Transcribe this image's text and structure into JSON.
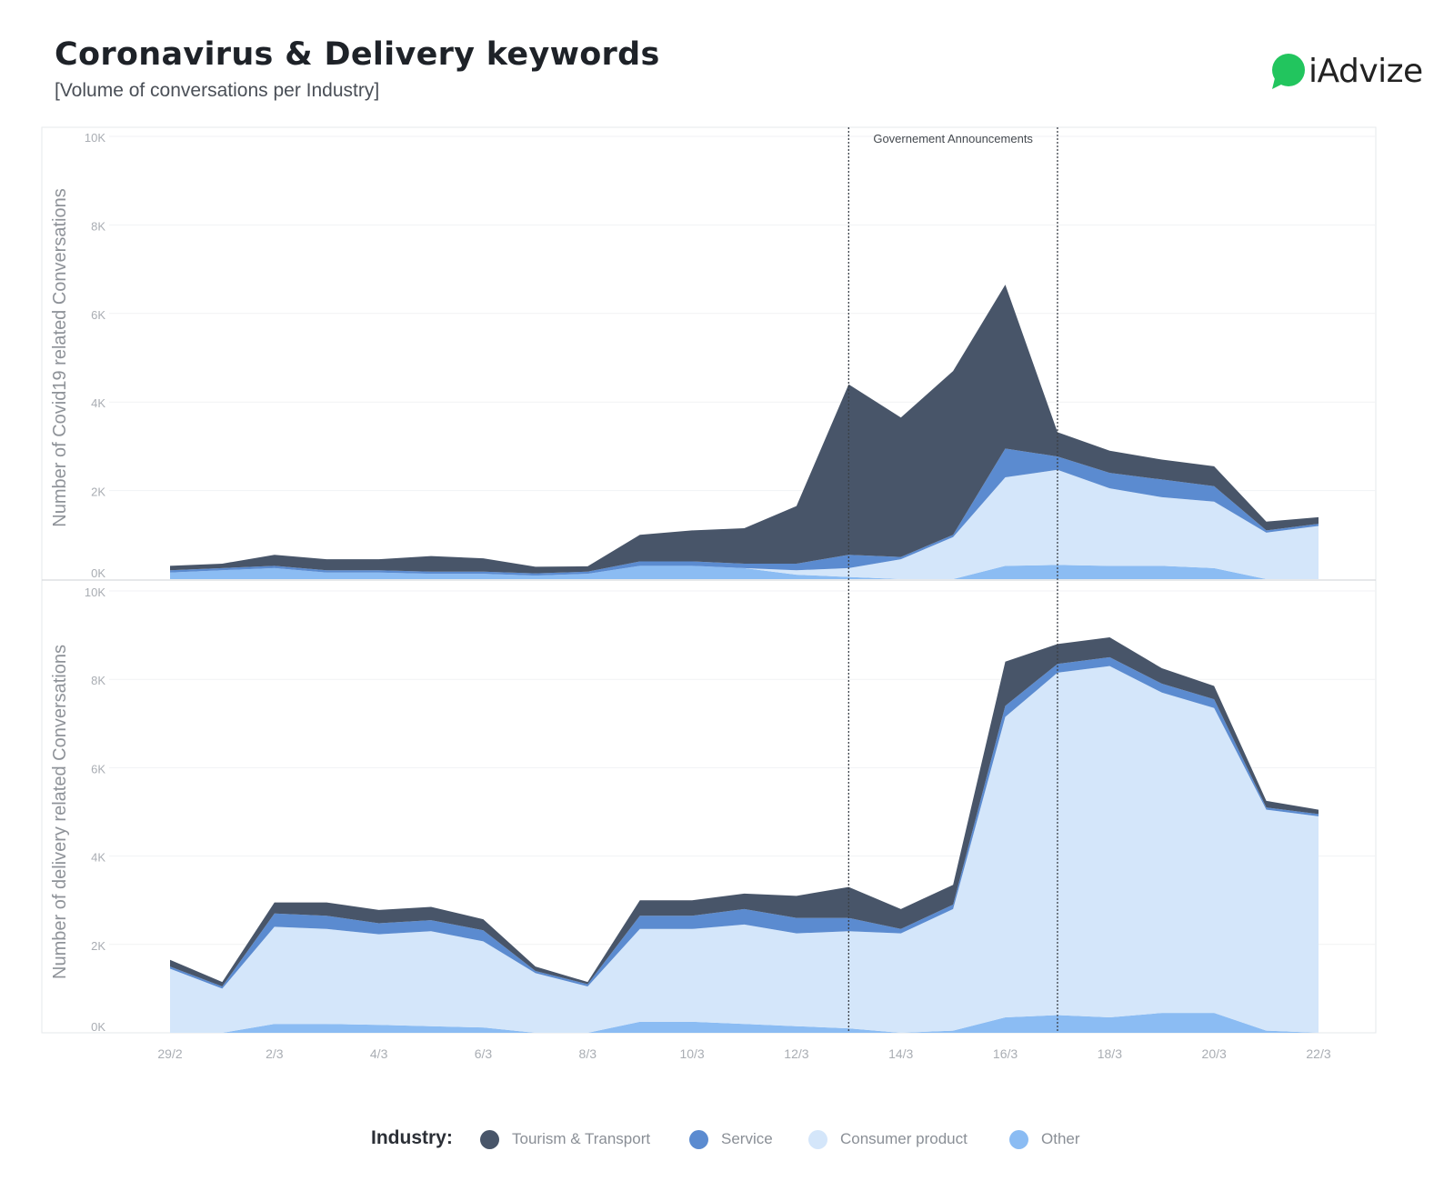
{
  "header": {
    "title": "Coronavirus & Delivery keywords",
    "subtitle": "[Volume of conversations per Industry]"
  },
  "logo": {
    "text": "iAdvize",
    "color": "#22c55e"
  },
  "legend": {
    "title": "Industry:",
    "items": [
      {
        "label": "Tourism & Transport",
        "color": "#485569"
      },
      {
        "label": "Service",
        "color": "#5b8bd0"
      },
      {
        "label": "Consumer product",
        "color": "#d4e6fa"
      },
      {
        "label": "Other",
        "color": "#8bbcf3"
      }
    ]
  },
  "annotation": {
    "label": "Governement Announcements",
    "start_index": 13,
    "end_index": 17
  },
  "chart_data": [
    {
      "type": "area",
      "stacked": true,
      "ylabel": "Number of Covid19 related Conversations",
      "ylim": [
        0,
        10000
      ],
      "yticks": [
        "0K",
        "2K",
        "4K",
        "6K",
        "8K",
        "10K"
      ],
      "x": [
        "29/2",
        "1/3",
        "2/3",
        "3/3",
        "4/3",
        "5/3",
        "6/3",
        "7/3",
        "8/3",
        "9/3",
        "10/3",
        "11/3",
        "12/3",
        "13/3",
        "14/3",
        "15/3",
        "16/3",
        "17/3",
        "18/3",
        "19/3",
        "20/3",
        "21/3",
        "22/3"
      ],
      "xtick_labels": [
        "29/2",
        "2/3",
        "4/3",
        "6/3",
        "8/3",
        "10/3",
        "12/3",
        "14/3",
        "16/3",
        "18/3",
        "20/3",
        "22/3"
      ],
      "series": [
        {
          "name": "Other",
          "values": [
            150,
            200,
            250,
            150,
            150,
            120,
            120,
            80,
            120,
            300,
            300,
            250,
            100,
            50,
            0,
            0,
            300,
            320,
            300,
            300,
            250,
            0,
            0
          ]
        },
        {
          "name": "Consumer product",
          "values": [
            0,
            0,
            0,
            0,
            0,
            0,
            0,
            0,
            0,
            0,
            0,
            0,
            100,
            200,
            450,
            950,
            2000,
            2150,
            1750,
            1550,
            1500,
            1050,
            1200
          ]
        },
        {
          "name": "Service",
          "values": [
            50,
            50,
            50,
            50,
            50,
            50,
            50,
            50,
            50,
            100,
            100,
            100,
            150,
            300,
            50,
            50,
            650,
            300,
            350,
            400,
            350,
            50,
            50
          ]
        },
        {
          "name": "Tourism & Transport",
          "values": [
            100,
            100,
            250,
            250,
            250,
            350,
            300,
            150,
            120,
            600,
            700,
            800,
            1300,
            3850,
            3150,
            3700,
            3700,
            550,
            500,
            450,
            450,
            200,
            150
          ]
        }
      ]
    },
    {
      "type": "area",
      "stacked": true,
      "ylabel": "Number of delivery related Conversations",
      "ylim": [
        0,
        10000
      ],
      "yticks": [
        "0K",
        "2K",
        "4K",
        "6K",
        "8K",
        "10K"
      ],
      "x": [
        "29/2",
        "1/3",
        "2/3",
        "3/3",
        "4/3",
        "5/3",
        "6/3",
        "7/3",
        "8/3",
        "9/3",
        "10/3",
        "11/3",
        "12/3",
        "13/3",
        "14/3",
        "15/3",
        "16/3",
        "17/3",
        "18/3",
        "19/3",
        "20/3",
        "21/3",
        "22/3"
      ],
      "xtick_labels": [
        "29/2",
        "2/3",
        "4/3",
        "6/3",
        "8/3",
        "10/3",
        "12/3",
        "14/3",
        "16/3",
        "18/3",
        "20/3",
        "22/3"
      ],
      "series": [
        {
          "name": "Other",
          "values": [
            0,
            0,
            200,
            200,
            180,
            150,
            120,
            0,
            0,
            250,
            250,
            200,
            150,
            100,
            0,
            50,
            350,
            400,
            350,
            450,
            450,
            50,
            0
          ]
        },
        {
          "name": "Consumer product",
          "values": [
            1450,
            1000,
            2200,
            2150,
            2050,
            2150,
            1950,
            1350,
            1050,
            2100,
            2100,
            2250,
            2100,
            2200,
            2250,
            2750,
            6800,
            7750,
            7950,
            7250,
            6900,
            5000,
            4900
          ]
        },
        {
          "name": "Service",
          "values": [
            50,
            50,
            300,
            300,
            250,
            250,
            250,
            50,
            50,
            300,
            300,
            350,
            350,
            300,
            100,
            100,
            250,
            200,
            200,
            200,
            200,
            50,
            50
          ]
        },
        {
          "name": "Tourism & Transport",
          "values": [
            150,
            100,
            250,
            300,
            300,
            300,
            250,
            100,
            50,
            350,
            350,
            350,
            500,
            700,
            450,
            450,
            1000,
            450,
            450,
            350,
            300,
            150,
            100
          ]
        }
      ]
    }
  ]
}
